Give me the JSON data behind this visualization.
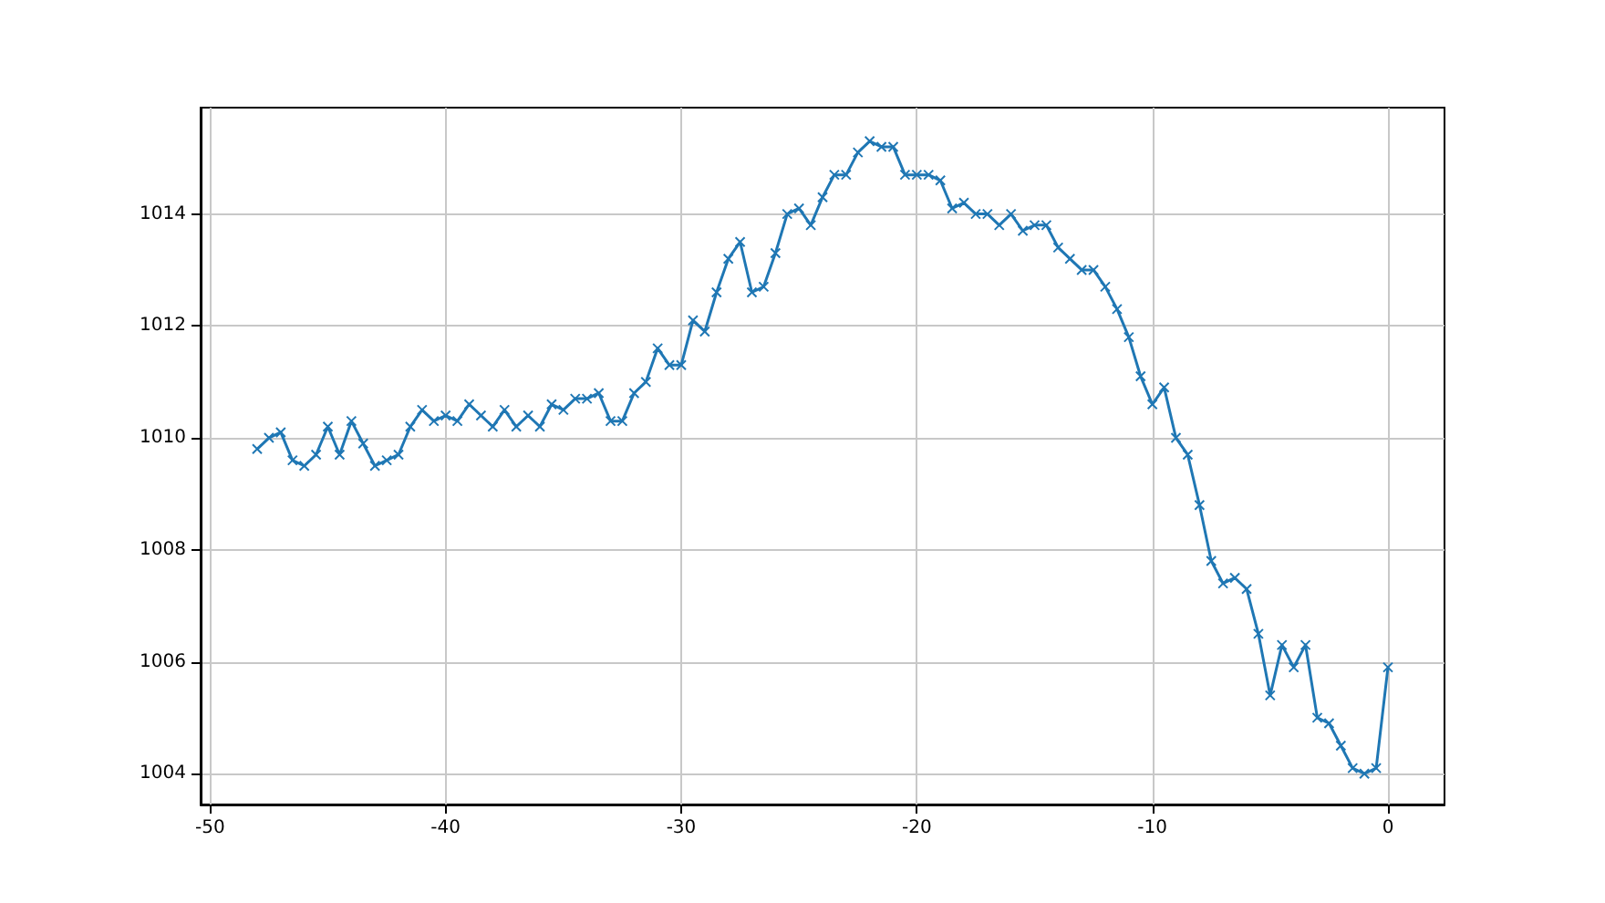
{
  "chart_data": {
    "type": "line",
    "marker": "cross",
    "grid": true,
    "xlim": [
      -50.4,
      2.4
    ],
    "ylim": [
      1003.45,
      1015.9
    ],
    "xticks": [
      -50,
      -40,
      -30,
      -20,
      -10,
      0
    ],
    "yticks": [
      1004,
      1006,
      1008,
      1010,
      1012,
      1014
    ],
    "series": [
      {
        "color": "#1f77b4",
        "x": [
          -48,
          -47.5,
          -47,
          -46.5,
          -46,
          -45.5,
          -45,
          -44.5,
          -44,
          -43.5,
          -43,
          -42.5,
          -42,
          -41.5,
          -41,
          -40.5,
          -40,
          -39.5,
          -39,
          -38.5,
          -38,
          -37.5,
          -37,
          -36.5,
          -36,
          -35.5,
          -35,
          -34.5,
          -34,
          -33.5,
          -33,
          -32.5,
          -32,
          -31.5,
          -31,
          -30.5,
          -30,
          -29.5,
          -29,
          -28.5,
          -28,
          -27.5,
          -27,
          -26.5,
          -26,
          -25.5,
          -25,
          -24.5,
          -24,
          -23.5,
          -23,
          -22.5,
          -22,
          -21.5,
          -21,
          -20.5,
          -20,
          -19.5,
          -19,
          -18.5,
          -18,
          -17.5,
          -17,
          -16.5,
          -16,
          -15.5,
          -15,
          -14.5,
          -14,
          -13.5,
          -13,
          -12.5,
          -12,
          -11.5,
          -11,
          -10.5,
          -10,
          -9.5,
          -9,
          -8.5,
          -8,
          -7.5,
          -7,
          -6.5,
          -6,
          -5.5,
          -5,
          -4.5,
          -4,
          -3.5,
          -3,
          -2.5,
          -2,
          -1.5,
          -1,
          -0.5,
          0
        ],
        "values": [
          1009.8,
          1010.0,
          1010.1,
          1009.6,
          1009.5,
          1009.7,
          1010.2,
          1009.7,
          1010.3,
          1009.9,
          1009.5,
          1009.6,
          1009.7,
          1010.2,
          1010.5,
          1010.3,
          1010.4,
          1010.3,
          1010.6,
          1010.4,
          1010.2,
          1010.5,
          1010.2,
          1010.4,
          1010.2,
          1010.6,
          1010.5,
          1010.7,
          1010.7,
          1010.8,
          1010.3,
          1010.3,
          1010.8,
          1011.0,
          1011.6,
          1011.3,
          1011.3,
          1012.1,
          1011.9,
          1012.6,
          1013.2,
          1013.5,
          1012.6,
          1012.7,
          1013.3,
          1014.0,
          1014.1,
          1013.8,
          1014.3,
          1014.7,
          1014.7,
          1015.1,
          1015.3,
          1015.2,
          1015.2,
          1014.7,
          1014.7,
          1014.7,
          1014.6,
          1014.1,
          1014.2,
          1014.0,
          1014.0,
          1013.8,
          1014.0,
          1013.7,
          1013.8,
          1013.8,
          1013.4,
          1013.2,
          1013.0,
          1013.0,
          1012.7,
          1012.3,
          1011.8,
          1011.1,
          1010.6,
          1010.9,
          1010.0,
          1009.7,
          1008.8,
          1007.8,
          1007.4,
          1007.5,
          1007.3,
          1006.5,
          1005.4,
          1006.3,
          1005.9,
          1006.3,
          1005.0,
          1004.9,
          1004.5,
          1004.1,
          1004.0,
          1004.1,
          1005.9
        ]
      }
    ]
  }
}
